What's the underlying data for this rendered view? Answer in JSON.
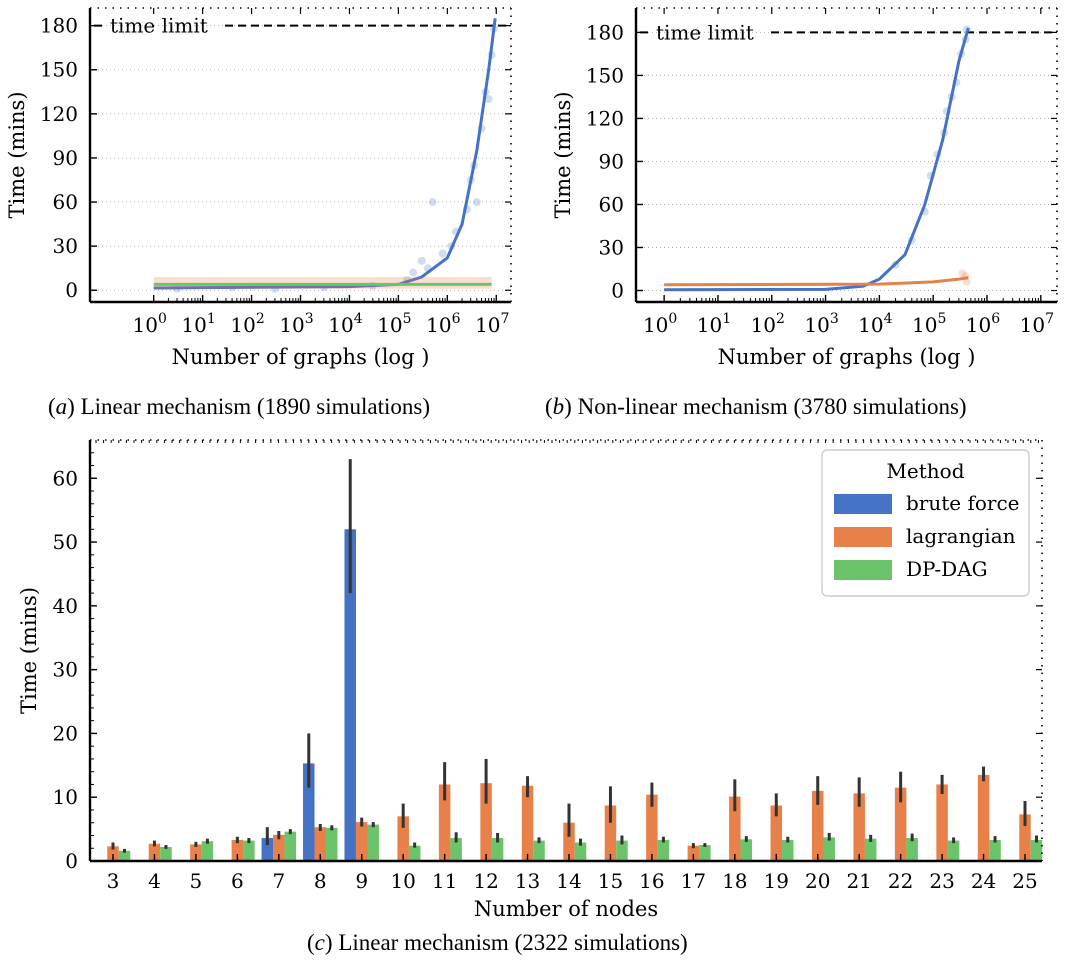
{
  "colors": {
    "brute_force": "#4472c4",
    "lagrangian": "#e8804a",
    "dp_dag": "#6cc46a",
    "time_limit": "#000000",
    "error_bar": "#333333",
    "grid": "#b0b0b0"
  },
  "captions": {
    "a": {
      "letter": "a",
      "text": "Linear mechanism (1890 simulations)"
    },
    "b": {
      "letter": "b",
      "text": "Non-linear mechanism (3780 simulations)"
    },
    "c": {
      "letter": "c",
      "text": "Linear mechanism (2322 simulations)"
    }
  },
  "chart_data": [
    {
      "id": "a",
      "type": "scatter",
      "xlabel": "Number of graphs (log )",
      "ylabel": "Time (mins)",
      "xscale": "log",
      "xlim": [
        0.05,
        20000000.0
      ],
      "ylim": [
        -8,
        192
      ],
      "xticks": [
        {
          "v": 1,
          "e": "0"
        },
        {
          "v": 10,
          "e": "1"
        },
        {
          "v": 100,
          "e": "2"
        },
        {
          "v": 1000,
          "e": "3"
        },
        {
          "v": 10000,
          "e": "4"
        },
        {
          "v": 100000,
          "e": "5"
        },
        {
          "v": 1000000,
          "e": "6"
        },
        {
          "v": 10000000,
          "e": "7"
        }
      ],
      "yticks": [
        0,
        30,
        60,
        90,
        120,
        150,
        180
      ],
      "grid": "horizontal dotted",
      "time_limit": {
        "y": 180,
        "label": "time limit"
      },
      "series": [
        {
          "key": "brute_force",
          "kind": "fit",
          "curve": [
            [
              1,
              1.5
            ],
            [
              10000,
              2.5
            ],
            [
              100000,
              4
            ],
            [
              300000,
              9
            ],
            [
              1000000,
              22
            ],
            [
              2000000,
              45
            ],
            [
              4000000,
              95
            ],
            [
              7000000,
              150
            ],
            [
              9500000,
              185
            ]
          ],
          "points": [
            [
              3,
              1
            ],
            [
              40,
              2
            ],
            [
              300,
              1
            ],
            [
              3000,
              2
            ],
            [
              30000,
              3
            ],
            [
              150000,
              7
            ],
            [
              200000,
              12
            ],
            [
              300000,
              20
            ],
            [
              400000,
              15
            ],
            [
              500000,
              60
            ],
            [
              800000,
              25
            ],
            [
              1200000,
              30
            ],
            [
              1500000,
              40
            ],
            [
              2500000,
              55
            ],
            [
              3000000,
              75
            ],
            [
              3500000,
              85
            ],
            [
              4000000,
              60
            ],
            [
              5000000,
              110
            ],
            [
              6000000,
              135
            ],
            [
              7000000,
              130
            ],
            [
              8000000,
              160
            ],
            [
              9000000,
              178
            ]
          ]
        },
        {
          "key": "lagrangian",
          "kind": "band",
          "x_range": [
            1,
            8000000
          ],
          "y_range": [
            1,
            9
          ]
        },
        {
          "key": "dp_dag",
          "kind": "fit",
          "curve": [
            [
              1,
              4
            ],
            [
              8000000,
              4
            ]
          ],
          "points": []
        }
      ]
    },
    {
      "id": "b",
      "type": "scatter",
      "xlabel": "Number of graphs (log )",
      "ylabel": "Time (mins)",
      "xscale": "log",
      "xlim": [
        0.3,
        20000000.0
      ],
      "ylim": [
        -8,
        197
      ],
      "xticks": [
        {
          "v": 1,
          "e": "0"
        },
        {
          "v": 10,
          "e": "1"
        },
        {
          "v": 100,
          "e": "2"
        },
        {
          "v": 1000,
          "e": "3"
        },
        {
          "v": 10000,
          "e": "4"
        },
        {
          "v": 100000,
          "e": "5"
        },
        {
          "v": 1000000,
          "e": "6"
        },
        {
          "v": 10000000,
          "e": "7"
        }
      ],
      "yticks": [
        0,
        30,
        60,
        90,
        120,
        150,
        180
      ],
      "grid": "horizontal dotted",
      "time_limit": {
        "y": 180,
        "label": "time limit"
      },
      "series": [
        {
          "key": "brute_force",
          "kind": "fit",
          "curve": [
            [
              1,
              0.5
            ],
            [
              1000,
              0.8
            ],
            [
              5000,
              3
            ],
            [
              10000,
              8
            ],
            [
              30000,
              25
            ],
            [
              70000,
              60
            ],
            [
              150000,
              105
            ],
            [
              300000,
              160
            ],
            [
              450000,
              183
            ]
          ],
          "points": [
            [
              20000,
              18
            ],
            [
              40000,
              35
            ],
            [
              70000,
              55
            ],
            [
              90000,
              80
            ],
            [
              120000,
              95
            ],
            [
              160000,
              110
            ],
            [
              180000,
              125
            ],
            [
              220000,
              135
            ],
            [
              270000,
              145
            ],
            [
              330000,
              165
            ],
            [
              400000,
              175
            ],
            [
              420000,
              182
            ]
          ]
        },
        {
          "key": "lagrangian",
          "kind": "fit",
          "curve": [
            [
              1,
              4
            ],
            [
              10000,
              4.5
            ],
            [
              100000,
              6
            ],
            [
              300000,
              8
            ],
            [
              450000,
              9
            ]
          ],
          "points": [
            [
              350000,
              12
            ],
            [
              400000,
              10
            ],
            [
              420000,
              6
            ]
          ]
        }
      ]
    },
    {
      "id": "c",
      "type": "bar",
      "xlabel": "Number of nodes",
      "ylabel": "Time (mins)",
      "categories": [
        "3",
        "4",
        "5",
        "6",
        "7",
        "8",
        "9",
        "10",
        "11",
        "12",
        "13",
        "14",
        "15",
        "16",
        "17",
        "18",
        "19",
        "20",
        "21",
        "22",
        "23",
        "24",
        "25"
      ],
      "ylim": [
        0,
        66
      ],
      "yticks": [
        0,
        10,
        20,
        30,
        40,
        50,
        60
      ],
      "legend": {
        "title": "Method",
        "position": "top-right"
      },
      "series": [
        {
          "key": "brute_force",
          "name": "brute force",
          "values": [
            null,
            null,
            null,
            null,
            3.6,
            15.3,
            52.0,
            null,
            null,
            null,
            null,
            null,
            null,
            null,
            null,
            null,
            null,
            null,
            null,
            null,
            null,
            null,
            null
          ],
          "err": [
            null,
            null,
            null,
            null,
            [
              2.5,
              5.3
            ],
            [
              11.5,
              20.0
            ],
            [
              42.0,
              63.0
            ],
            null,
            null,
            null,
            null,
            null,
            null,
            null,
            null,
            null,
            null,
            null,
            null,
            null,
            null,
            null,
            null
          ]
        },
        {
          "key": "lagrangian",
          "name": "lagrangian",
          "values": [
            2.3,
            2.7,
            2.6,
            3.3,
            4.1,
            5.3,
            6.1,
            7.0,
            12.0,
            12.2,
            11.8,
            6.0,
            8.7,
            10.4,
            2.4,
            10.1,
            8.7,
            11.0,
            10.6,
            11.5,
            12.0,
            13.5,
            7.3
          ],
          "err": [
            [
              1.8,
              2.9
            ],
            [
              2.3,
              3.2
            ],
            [
              2.2,
              3.0
            ],
            [
              2.8,
              3.8
            ],
            [
              3.4,
              4.7
            ],
            [
              4.7,
              5.8
            ],
            [
              5.4,
              6.8
            ],
            [
              5.2,
              9.0
            ],
            [
              9.5,
              15.5
            ],
            [
              9.0,
              16.0
            ],
            [
              10.0,
              13.3
            ],
            [
              3.8,
              9.0
            ],
            [
              6.0,
              11.7
            ],
            [
              8.5,
              12.3
            ],
            [
              2.0,
              2.8
            ],
            [
              7.8,
              12.8
            ],
            [
              7.0,
              10.6
            ],
            [
              8.8,
              13.3
            ],
            [
              8.5,
              13.1
            ],
            [
              9.2,
              14.0
            ],
            [
              10.5,
              13.5
            ],
            [
              12.5,
              14.8
            ],
            [
              5.5,
              9.4
            ]
          ]
        },
        {
          "key": "dp_dag",
          "name": "DP-DAG",
          "values": [
            1.6,
            2.2,
            3.1,
            3.2,
            4.6,
            5.2,
            5.7,
            2.4,
            3.6,
            3.6,
            3.2,
            2.9,
            3.2,
            3.3,
            2.5,
            3.4,
            3.3,
            3.7,
            3.5,
            3.6,
            3.2,
            3.3,
            3.3
          ],
          "err": [
            [
              1.3,
              1.9
            ],
            [
              1.9,
              2.5
            ],
            [
              2.7,
              3.5
            ],
            [
              2.8,
              3.6
            ],
            [
              4.2,
              5.0
            ],
            [
              4.8,
              5.6
            ],
            [
              5.3,
              6.1
            ],
            [
              2.1,
              2.9
            ],
            [
              2.9,
              4.5
            ],
            [
              2.9,
              4.4
            ],
            [
              2.8,
              3.7
            ],
            [
              2.4,
              3.5
            ],
            [
              2.6,
              4.0
            ],
            [
              2.9,
              3.8
            ],
            [
              2.2,
              2.8
            ],
            [
              3.0,
              3.9
            ],
            [
              2.9,
              3.8
            ],
            [
              3.2,
              4.4
            ],
            [
              3.0,
              4.1
            ],
            [
              3.1,
              4.3
            ],
            [
              2.8,
              3.7
            ],
            [
              2.9,
              3.9
            ],
            [
              2.9,
              4.0
            ]
          ]
        }
      ]
    }
  ]
}
